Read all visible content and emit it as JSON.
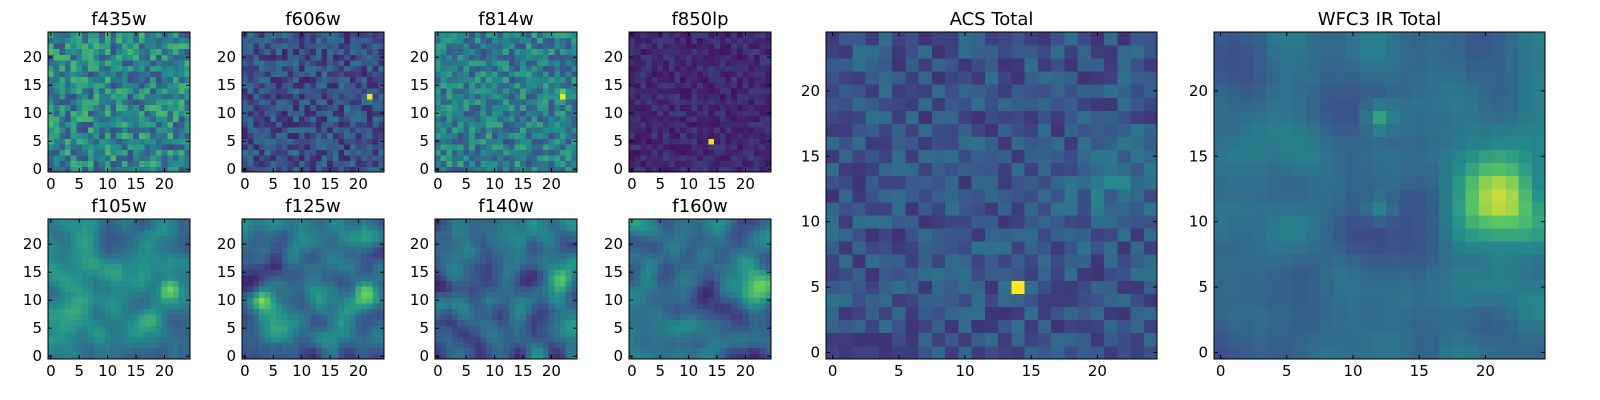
{
  "figure": {
    "panels": [
      {
        "title": "f435w",
        "xticks": [
          "0",
          "5",
          "10",
          "15",
          "20"
        ],
        "yticks": [
          "0",
          "5",
          "10",
          "15",
          "20"
        ]
      },
      {
        "title": "f606w",
        "xticks": [
          "0",
          "5",
          "10",
          "15",
          "20"
        ],
        "yticks": [
          "0",
          "5",
          "10",
          "15",
          "20"
        ]
      },
      {
        "title": "f814w",
        "xticks": [
          "0",
          "5",
          "10",
          "15",
          "20"
        ],
        "yticks": [
          "0",
          "5",
          "10",
          "15",
          "20"
        ]
      },
      {
        "title": "f850lp",
        "xticks": [
          "0",
          "5",
          "10",
          "15",
          "20"
        ],
        "yticks": [
          "0",
          "5",
          "10",
          "15",
          "20"
        ]
      },
      {
        "title": "f105w",
        "xticks": [
          "0",
          "5",
          "10",
          "15",
          "20"
        ],
        "yticks": [
          "0",
          "5",
          "10",
          "15",
          "20"
        ]
      },
      {
        "title": "f125w",
        "xticks": [
          "0",
          "5",
          "10",
          "15",
          "20"
        ],
        "yticks": [
          "0",
          "5",
          "10",
          "15",
          "20"
        ]
      },
      {
        "title": "f140w",
        "xticks": [
          "0",
          "5",
          "10",
          "15",
          "20"
        ],
        "yticks": [
          "0",
          "5",
          "10",
          "15",
          "20"
        ]
      },
      {
        "title": "f160w",
        "xticks": [
          "0",
          "5",
          "10",
          "15",
          "20"
        ],
        "yticks": [
          "0",
          "5",
          "10",
          "15",
          "20"
        ]
      },
      {
        "title": "ACS Total",
        "xticks": [
          "0",
          "5",
          "10",
          "15",
          "20"
        ],
        "yticks": [
          "0",
          "5",
          "10",
          "15",
          "20"
        ]
      },
      {
        "title": "WFC3 IR Total",
        "xticks": [
          "0",
          "5",
          "10",
          "15",
          "20"
        ],
        "yticks": [
          "0",
          "5",
          "10",
          "15",
          "20"
        ]
      }
    ]
  },
  "chart_data": {
    "type": "heatmap",
    "grid_size": [
      25,
      25
    ],
    "colormap": [
      "#440154",
      "#3b528b",
      "#21918c",
      "#5ec962",
      "#fde725"
    ],
    "xlim": [
      -0.5,
      24.5
    ],
    "ylim": [
      -0.5,
      24.5
    ],
    "grid": false,
    "panels": [
      {
        "title": "f435w",
        "style": "noise",
        "base": 0.45,
        "noise": 0.22,
        "seed": 11,
        "sources": []
      },
      {
        "title": "f606w",
        "style": "noise",
        "base": 0.25,
        "noise": 0.15,
        "seed": 23,
        "sources": [
          {
            "x": 22,
            "y": 13,
            "peak": 0.9,
            "width": 0.4
          }
        ]
      },
      {
        "title": "f814w",
        "style": "noise",
        "base": 0.42,
        "noise": 0.18,
        "seed": 37,
        "sources": [
          {
            "x": 22,
            "y": 13,
            "peak": 0.55,
            "width": 0.7
          }
        ]
      },
      {
        "title": "f850lp",
        "style": "noise",
        "base": 0.12,
        "noise": 0.07,
        "seed": 41,
        "sources": [
          {
            "x": 14,
            "y": 5,
            "peak": 0.9,
            "width": 0.35
          }
        ]
      },
      {
        "title": "f105w",
        "style": "smooth",
        "base": 0.45,
        "noise": 0.2,
        "seed": 53,
        "sources": [
          {
            "x": 21,
            "y": 12,
            "peak": 0.5,
            "width": 1.3
          }
        ]
      },
      {
        "title": "f125w",
        "style": "smooth",
        "base": 0.38,
        "noise": 0.28,
        "seed": 67,
        "sources": [
          {
            "x": 3,
            "y": 10,
            "peak": 0.35,
            "width": 1.2
          },
          {
            "x": 21,
            "y": 11,
            "peak": 0.35,
            "width": 1.6
          }
        ]
      },
      {
        "title": "f140w",
        "style": "smooth",
        "base": 0.35,
        "noise": 0.28,
        "seed": 79,
        "sources": [
          {
            "x": 22,
            "y": 14,
            "peak": 0.3,
            "width": 1.4
          }
        ]
      },
      {
        "title": "f160w",
        "style": "smooth",
        "base": 0.35,
        "noise": 0.24,
        "seed": 83,
        "sources": [
          {
            "x": 22,
            "y": 12,
            "peak": 0.55,
            "width": 2.2
          }
        ]
      },
      {
        "title": "ACS Total",
        "style": "noise",
        "base": 0.26,
        "noise": 0.11,
        "seed": 97,
        "sources": [
          {
            "x": 14,
            "y": 5,
            "peak": 0.72,
            "width": 0.35
          },
          {
            "x": 21,
            "y": 13,
            "peak": 0.12,
            "width": 2.0
          }
        ]
      },
      {
        "title": "WFC3 IR Total",
        "style": "smooth",
        "base": 0.35,
        "noise": 0.15,
        "seed": 109,
        "sources": [
          {
            "x": 21,
            "y": 12,
            "peak": 0.55,
            "width": 2.0
          },
          {
            "x": 12,
            "y": 18,
            "peak": 0.25,
            "width": 0.7
          },
          {
            "x": 12,
            "y": 11,
            "peak": 0.2,
            "width": 0.8
          }
        ]
      }
    ]
  }
}
